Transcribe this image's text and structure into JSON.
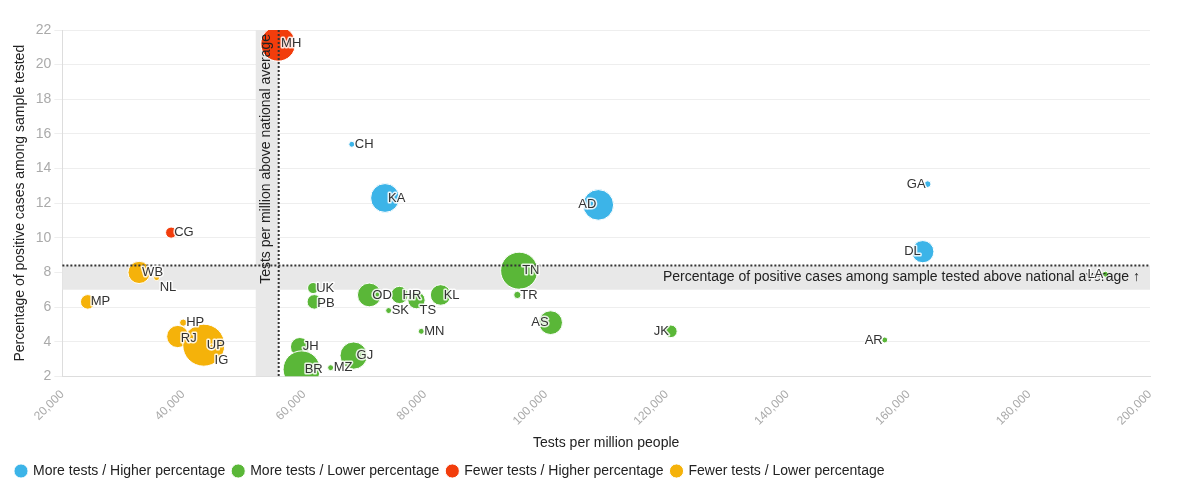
{
  "chart_data": {
    "type": "bubble",
    "xlabel": "Tests per million people",
    "ylabel": "Percentage of positive cases among sample tested",
    "xlim": [
      20000,
      200000
    ],
    "xticks": [
      {
        "value": 20000,
        "label": "20,000"
      },
      {
        "value": 40000,
        "label": "40,000"
      },
      {
        "value": 60000,
        "label": "60,000"
      },
      {
        "value": 80000,
        "label": "80,000"
      },
      {
        "value": 100000,
        "label": "100,000"
      },
      {
        "value": 120000,
        "label": "120,000"
      },
      {
        "value": 140000,
        "label": "140,000"
      },
      {
        "value": 160000,
        "label": "160,000"
      },
      {
        "value": 180000,
        "label": "180,000"
      },
      {
        "value": 200000,
        "label": "200,000"
      }
    ],
    "ylim": [
      2,
      22
    ],
    "yticks": [
      2,
      4,
      6,
      8,
      10,
      12,
      14,
      16,
      18,
      20,
      22
    ],
    "grid": "y",
    "legend": "bottom left",
    "series": [
      {
        "name": "More tests / Higher percentage",
        "color": "#3cb4e8",
        "x": [
          73400,
          108700,
          163200,
          162400,
          67900
        ],
        "values": [
          12.3,
          11.9,
          13.1,
          9.2,
          15.4
        ],
        "sizes": [
          0.47,
          0.53,
          0.025,
          0.28,
          0.02
        ],
        "value_labels": [
          "KA",
          "AD",
          "GA",
          "DL",
          "CH"
        ]
      },
      {
        "name": "More tests / Lower percentage",
        "color": "#5ab738",
        "x": [
          61500,
          61700,
          70800,
          75800,
          78600,
          82600,
          74000,
          79400,
          95600,
          95300,
          100800,
          120700,
          156100,
          59300,
          59600,
          68200,
          64400,
          192600
        ],
        "values": [
          7.1,
          6.3,
          6.7,
          6.7,
          6.4,
          6.7,
          5.8,
          4.6,
          8.1,
          6.7,
          5.1,
          4.6,
          4.1,
          3.7,
          2.4,
          3.2,
          2.5,
          7.9
        ],
        "sizes": [
          0.07,
          0.12,
          0.32,
          0.17,
          0.17,
          0.24,
          0.02,
          0.02,
          0.78,
          0.03,
          0.32,
          0.09,
          0.02,
          0.2,
          0.78,
          0.42,
          0.02,
          0.02
        ],
        "value_labels": [
          "UK",
          "PB",
          "OD",
          "HR",
          "TS",
          "KL",
          "SK",
          "MN",
          "TN",
          "TR",
          "AS",
          "JK",
          "AR",
          "JH",
          "BR",
          "GJ",
          "MZ",
          "LA"
        ]
      },
      {
        "name": "Fewer tests / Higher percentage",
        "color": "#f23d0c",
        "x": [
          55700,
          38000
        ],
        "values": [
          21.2,
          10.3
        ],
        "sizes": [
          0.68,
          0.07
        ],
        "value_labels": [
          "MH",
          "CG"
        ]
      },
      {
        "name": "Fewer tests / Lower percentage",
        "color": "#f5b20a",
        "x": [
          32700,
          35600,
          24200,
          40000,
          39100,
          43400,
          44700
        ],
        "values": [
          8.0,
          7.7,
          6.3,
          5.1,
          4.3,
          3.8,
          3.7
        ],
        "sizes": [
          0.28,
          0.02,
          0.12,
          0.03,
          0.28,
          1,
          0.02
        ],
        "value_labels": [
          "WB",
          "NL",
          "MP",
          "HP",
          "RJ",
          "UP",
          "IG"
        ]
      }
    ],
    "bands": [
      {
        "axis": "x",
        "from": 52000,
        "to": 55800,
        "color": "#e8e8e8"
      },
      {
        "axis": "y",
        "from": 7,
        "to": 8.4,
        "color": "#e8e8e8"
      }
    ],
    "ref_lines": [
      {
        "axis": "x",
        "value": 55800,
        "label": "Tests per million above national average",
        "line_style": "dotted"
      },
      {
        "axis": "y",
        "value": 8.4,
        "label": "Percentage of positive cases among sample tested above national average ↑",
        "line_style": "dotted"
      }
    ]
  }
}
